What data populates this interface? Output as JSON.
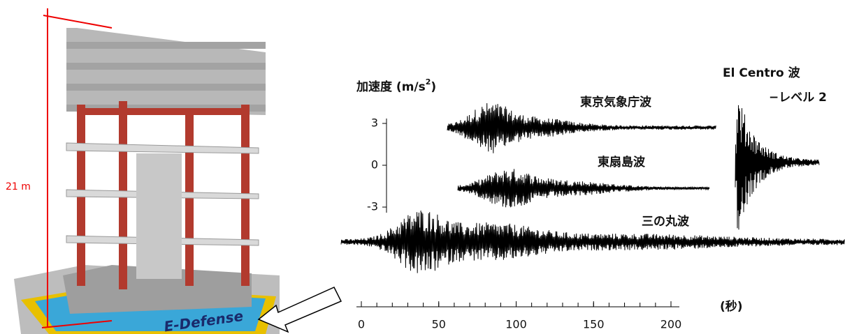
{
  "building": {
    "height_label": "21 m",
    "logo": "E-Defense"
  },
  "acceleration_axis": {
    "label": "加速度 (m/s",
    "label_sup": "2",
    "label_end": ")",
    "ticks": [
      3,
      0,
      -3
    ]
  },
  "time_axis": {
    "ticks": [
      0,
      50,
      100,
      150,
      200
    ],
    "unit": "(秒)"
  },
  "waves": [
    "東京気象庁波",
    "東扇島波",
    "三の丸波",
    "El Centro 波"
  ],
  "el_centro_level": "−レベル 2"
}
